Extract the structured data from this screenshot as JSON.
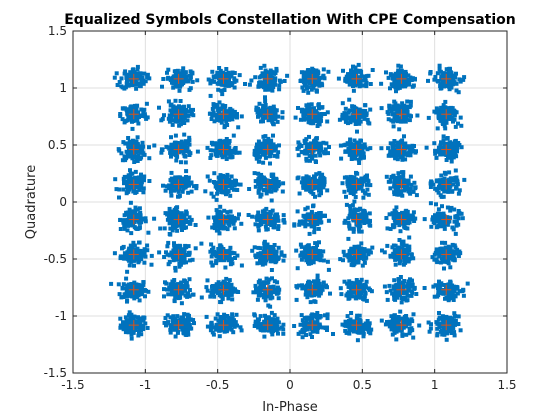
{
  "chart_data": {
    "type": "scatter",
    "title": "Equalized Symbols Constellation With CPE Compensation",
    "xlabel": "In-Phase",
    "ylabel": "Quadrature",
    "xlim": [
      -1.5,
      1.5
    ],
    "ylim": [
      -1.5,
      1.5
    ],
    "xticks": [
      "-1.5",
      "-1",
      "-0.5",
      "0",
      "0.5",
      "1",
      "1.5"
    ],
    "yticks": [
      "1.5",
      "1",
      "0.5",
      "0",
      "-0.5",
      "-1",
      "-1.5"
    ],
    "grid": true,
    "legend": "none",
    "constellation": "64-QAM",
    "reference_levels": [
      -1.08,
      -0.77,
      -0.46,
      -0.154,
      0.154,
      0.46,
      0.77,
      1.08
    ],
    "cluster_spread_std": 0.045,
    "received_color": "#0072BD",
    "reference_color": "#D95319",
    "axis_color": "#262626",
    "grid_color": "#DFDFDF"
  }
}
